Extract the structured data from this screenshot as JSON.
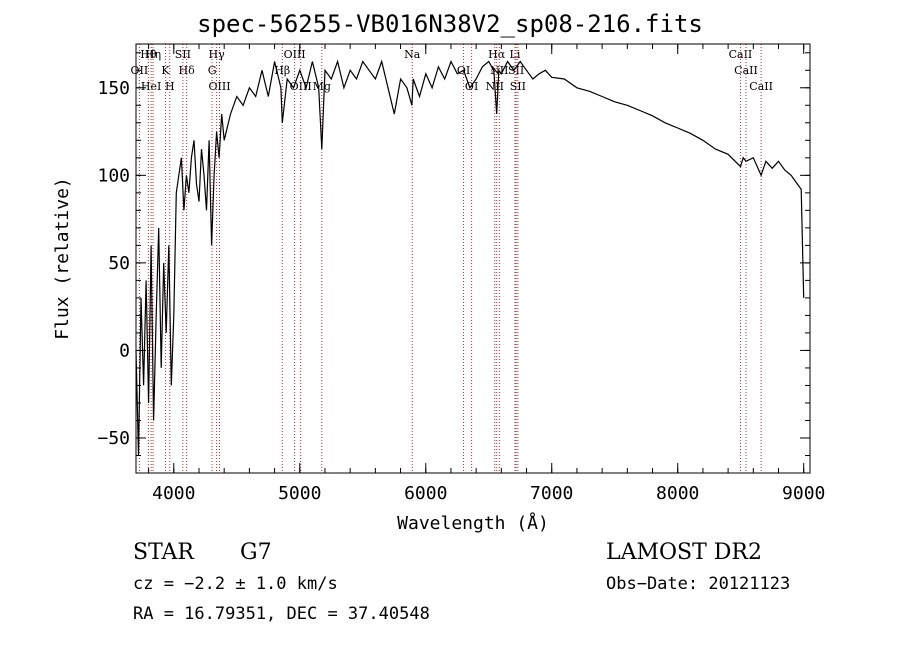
{
  "chart_data": {
    "type": "line",
    "title": "spec-56255-VB016N38V2_sp08-216.fits",
    "xlabel": "Wavelength (Å)",
    "ylabel": "Flux (relative)",
    "xlim": [
      3700,
      9050
    ],
    "ylim": [
      -70,
      175
    ],
    "x_ticks": [
      4000,
      5000,
      6000,
      7000,
      8000,
      9000
    ],
    "y_ticks": [
      -50,
      0,
      50,
      100,
      150
    ],
    "x_tick_labels": [
      "4000",
      "5000",
      "6000",
      "7000",
      "8000",
      "9000"
    ],
    "y_tick_labels": [
      "−50",
      "0",
      "50",
      "100",
      "150"
    ],
    "grid": false,
    "legend": "none",
    "series": [
      {
        "x": [
          3700,
          3720,
          3740,
          3760,
          3780,
          3800,
          3820,
          3840,
          3860,
          3880,
          3900,
          3920,
          3940,
          3960,
          3980,
          4000,
          4020,
          4040,
          4060,
          4080,
          4100,
          4120,
          4140,
          4160,
          4180,
          4200,
          4220,
          4240,
          4260,
          4280,
          4300,
          4320,
          4340,
          4360,
          4380,
          4400,
          4450,
          4500,
          4550,
          4600,
          4650,
          4700,
          4750,
          4800,
          4850,
          4861,
          4900,
          4950,
          5000,
          5050,
          5100,
          5150,
          5175,
          5200,
          5250,
          5300,
          5350,
          5400,
          5450,
          5500,
          5550,
          5600,
          5650,
          5700,
          5750,
          5800,
          5850,
          5890,
          5900,
          5950,
          6000,
          6050,
          6100,
          6150,
          6200,
          6250,
          6300,
          6350,
          6400,
          6450,
          6500,
          6540,
          6563,
          6580,
          6600,
          6650,
          6700,
          6750,
          6800,
          6850,
          6900,
          6950,
          7000,
          7100,
          7200,
          7300,
          7400,
          7500,
          7600,
          7700,
          7800,
          7900,
          8000,
          8100,
          8200,
          8300,
          8400,
          8498,
          8520,
          8542,
          8600,
          8662,
          8700,
          8750,
          8800,
          8850,
          8900,
          8950,
          8980,
          9000
        ],
        "y": [
          0,
          -60,
          30,
          -20,
          40,
          -30,
          60,
          -40,
          20,
          70,
          -10,
          50,
          10,
          60,
          -20,
          20,
          90,
          100,
          110,
          80,
          100,
          90,
          110,
          120,
          95,
          85,
          115,
          100,
          80,
          120,
          60,
          100,
          125,
          110,
          135,
          120,
          135,
          145,
          140,
          150,
          145,
          160,
          145,
          165,
          150,
          130,
          155,
          150,
          160,
          150,
          165,
          150,
          115,
          160,
          155,
          165,
          150,
          160,
          155,
          165,
          160,
          155,
          165,
          150,
          135,
          155,
          150,
          140,
          155,
          145,
          158,
          150,
          162,
          155,
          165,
          158,
          160,
          150,
          155,
          162,
          165,
          160,
          135,
          160,
          158,
          165,
          160,
          165,
          160,
          155,
          158,
          160,
          156,
          155,
          150,
          148,
          145,
          142,
          140,
          137,
          134,
          130,
          127,
          124,
          120,
          115,
          112,
          105,
          110,
          108,
          110,
          100,
          108,
          104,
          108,
          103,
          100,
          95,
          92,
          30
        ]
      }
    ],
    "lines": [
      {
        "label": "Hθ",
        "wl": 3798
      },
      {
        "label": "OII",
        "wl": 3727
      },
      {
        "label": "HeI",
        "wl": 3820
      },
      {
        "label": "Hη",
        "wl": 3835
      },
      {
        "label": "K",
        "wl": 3934
      },
      {
        "label": "H",
        "wl": 3968
      },
      {
        "label": "SII",
        "wl": 4072
      },
      {
        "label": "Hδ",
        "wl": 4102
      },
      {
        "label": "OIII",
        "wl": 4363
      },
      {
        "label": "Hγ",
        "wl": 4340
      },
      {
        "label": "G",
        "wl": 4304
      },
      {
        "label": "OIII",
        "wl": 5007
      },
      {
        "label": "OIII",
        "wl": 4959
      },
      {
        "label": "Hβ",
        "wl": 4861
      },
      {
        "label": "Mg",
        "wl": 5175
      },
      {
        "label": "Na",
        "wl": 5893
      },
      {
        "label": "OI",
        "wl": 6300
      },
      {
        "label": "OI",
        "wl": 6364
      },
      {
        "label": "Hα",
        "wl": 6563
      },
      {
        "label": "NII",
        "wl": 6584
      },
      {
        "label": "NII",
        "wl": 6548
      },
      {
        "label": "Li",
        "wl": 6708
      },
      {
        "label": "SII",
        "wl": 6717
      },
      {
        "label": "SII",
        "wl": 6731
      },
      {
        "label": "CaII",
        "wl": 8498
      },
      {
        "label": "CaII",
        "wl": 8542
      },
      {
        "label": "CaII",
        "wl": 8662
      }
    ]
  },
  "info": {
    "class": "STAR",
    "subclass": "G7",
    "survey": "LAMOST DR2",
    "cz": "cz = −2.2 ± 1.0 km/s",
    "obs_date": "Obs−Date: 20121123",
    "coords": "RA =  16.79351, DEC =  37.40548"
  },
  "colors": {
    "spectrum": "#000000",
    "lines": "#b03030",
    "axes": "#000000"
  }
}
